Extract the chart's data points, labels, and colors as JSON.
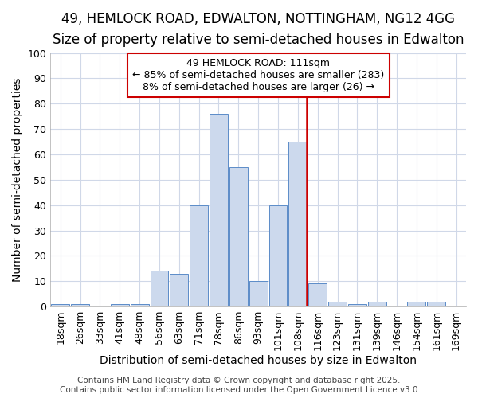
{
  "title1": "49, HEMLOCK ROAD, EDWALTON, NOTTINGHAM, NG12 4GG",
  "title2": "Size of property relative to semi-detached houses in Edwalton",
  "xlabel": "Distribution of semi-detached houses by size in Edwalton",
  "ylabel": "Number of semi-detached properties",
  "categories": [
    "18sqm",
    "26sqm",
    "33sqm",
    "41sqm",
    "48sqm",
    "56sqm",
    "63sqm",
    "71sqm",
    "78sqm",
    "86sqm",
    "93sqm",
    "101sqm",
    "108sqm",
    "116sqm",
    "123sqm",
    "131sqm",
    "139sqm",
    "146sqm",
    "154sqm",
    "161sqm",
    "169sqm"
  ],
  "values": [
    1,
    1,
    0,
    1,
    1,
    14,
    13,
    40,
    76,
    55,
    10,
    40,
    65,
    9,
    2,
    1,
    2,
    0,
    2,
    2,
    0
  ],
  "bar_color": "#ccd9ed",
  "bar_edge_color": "#5b8cc8",
  "vline_color": "#cc0000",
  "annotation_line1": "49 HEMLOCK ROAD: 111sqm",
  "annotation_line2": "← 85% of semi-detached houses are smaller (283)",
  "annotation_line3": "8% of semi-detached houses are larger (26) →",
  "annotation_box_color": "#ffffff",
  "annotation_box_edge": "#cc0000",
  "ylim": [
    0,
    100
  ],
  "yticks": [
    0,
    10,
    20,
    30,
    40,
    50,
    60,
    70,
    80,
    90,
    100
  ],
  "plot_bg_color": "#ffffff",
  "fig_bg_color": "#ffffff",
  "grid_color": "#d0d8e8",
  "footer": "Contains HM Land Registry data © Crown copyright and database right 2025.\nContains public sector information licensed under the Open Government Licence v3.0",
  "title_fontsize": 12,
  "subtitle_fontsize": 10,
  "axis_label_fontsize": 10,
  "tick_fontsize": 9,
  "annot_fontsize": 9,
  "footer_fontsize": 7.5
}
